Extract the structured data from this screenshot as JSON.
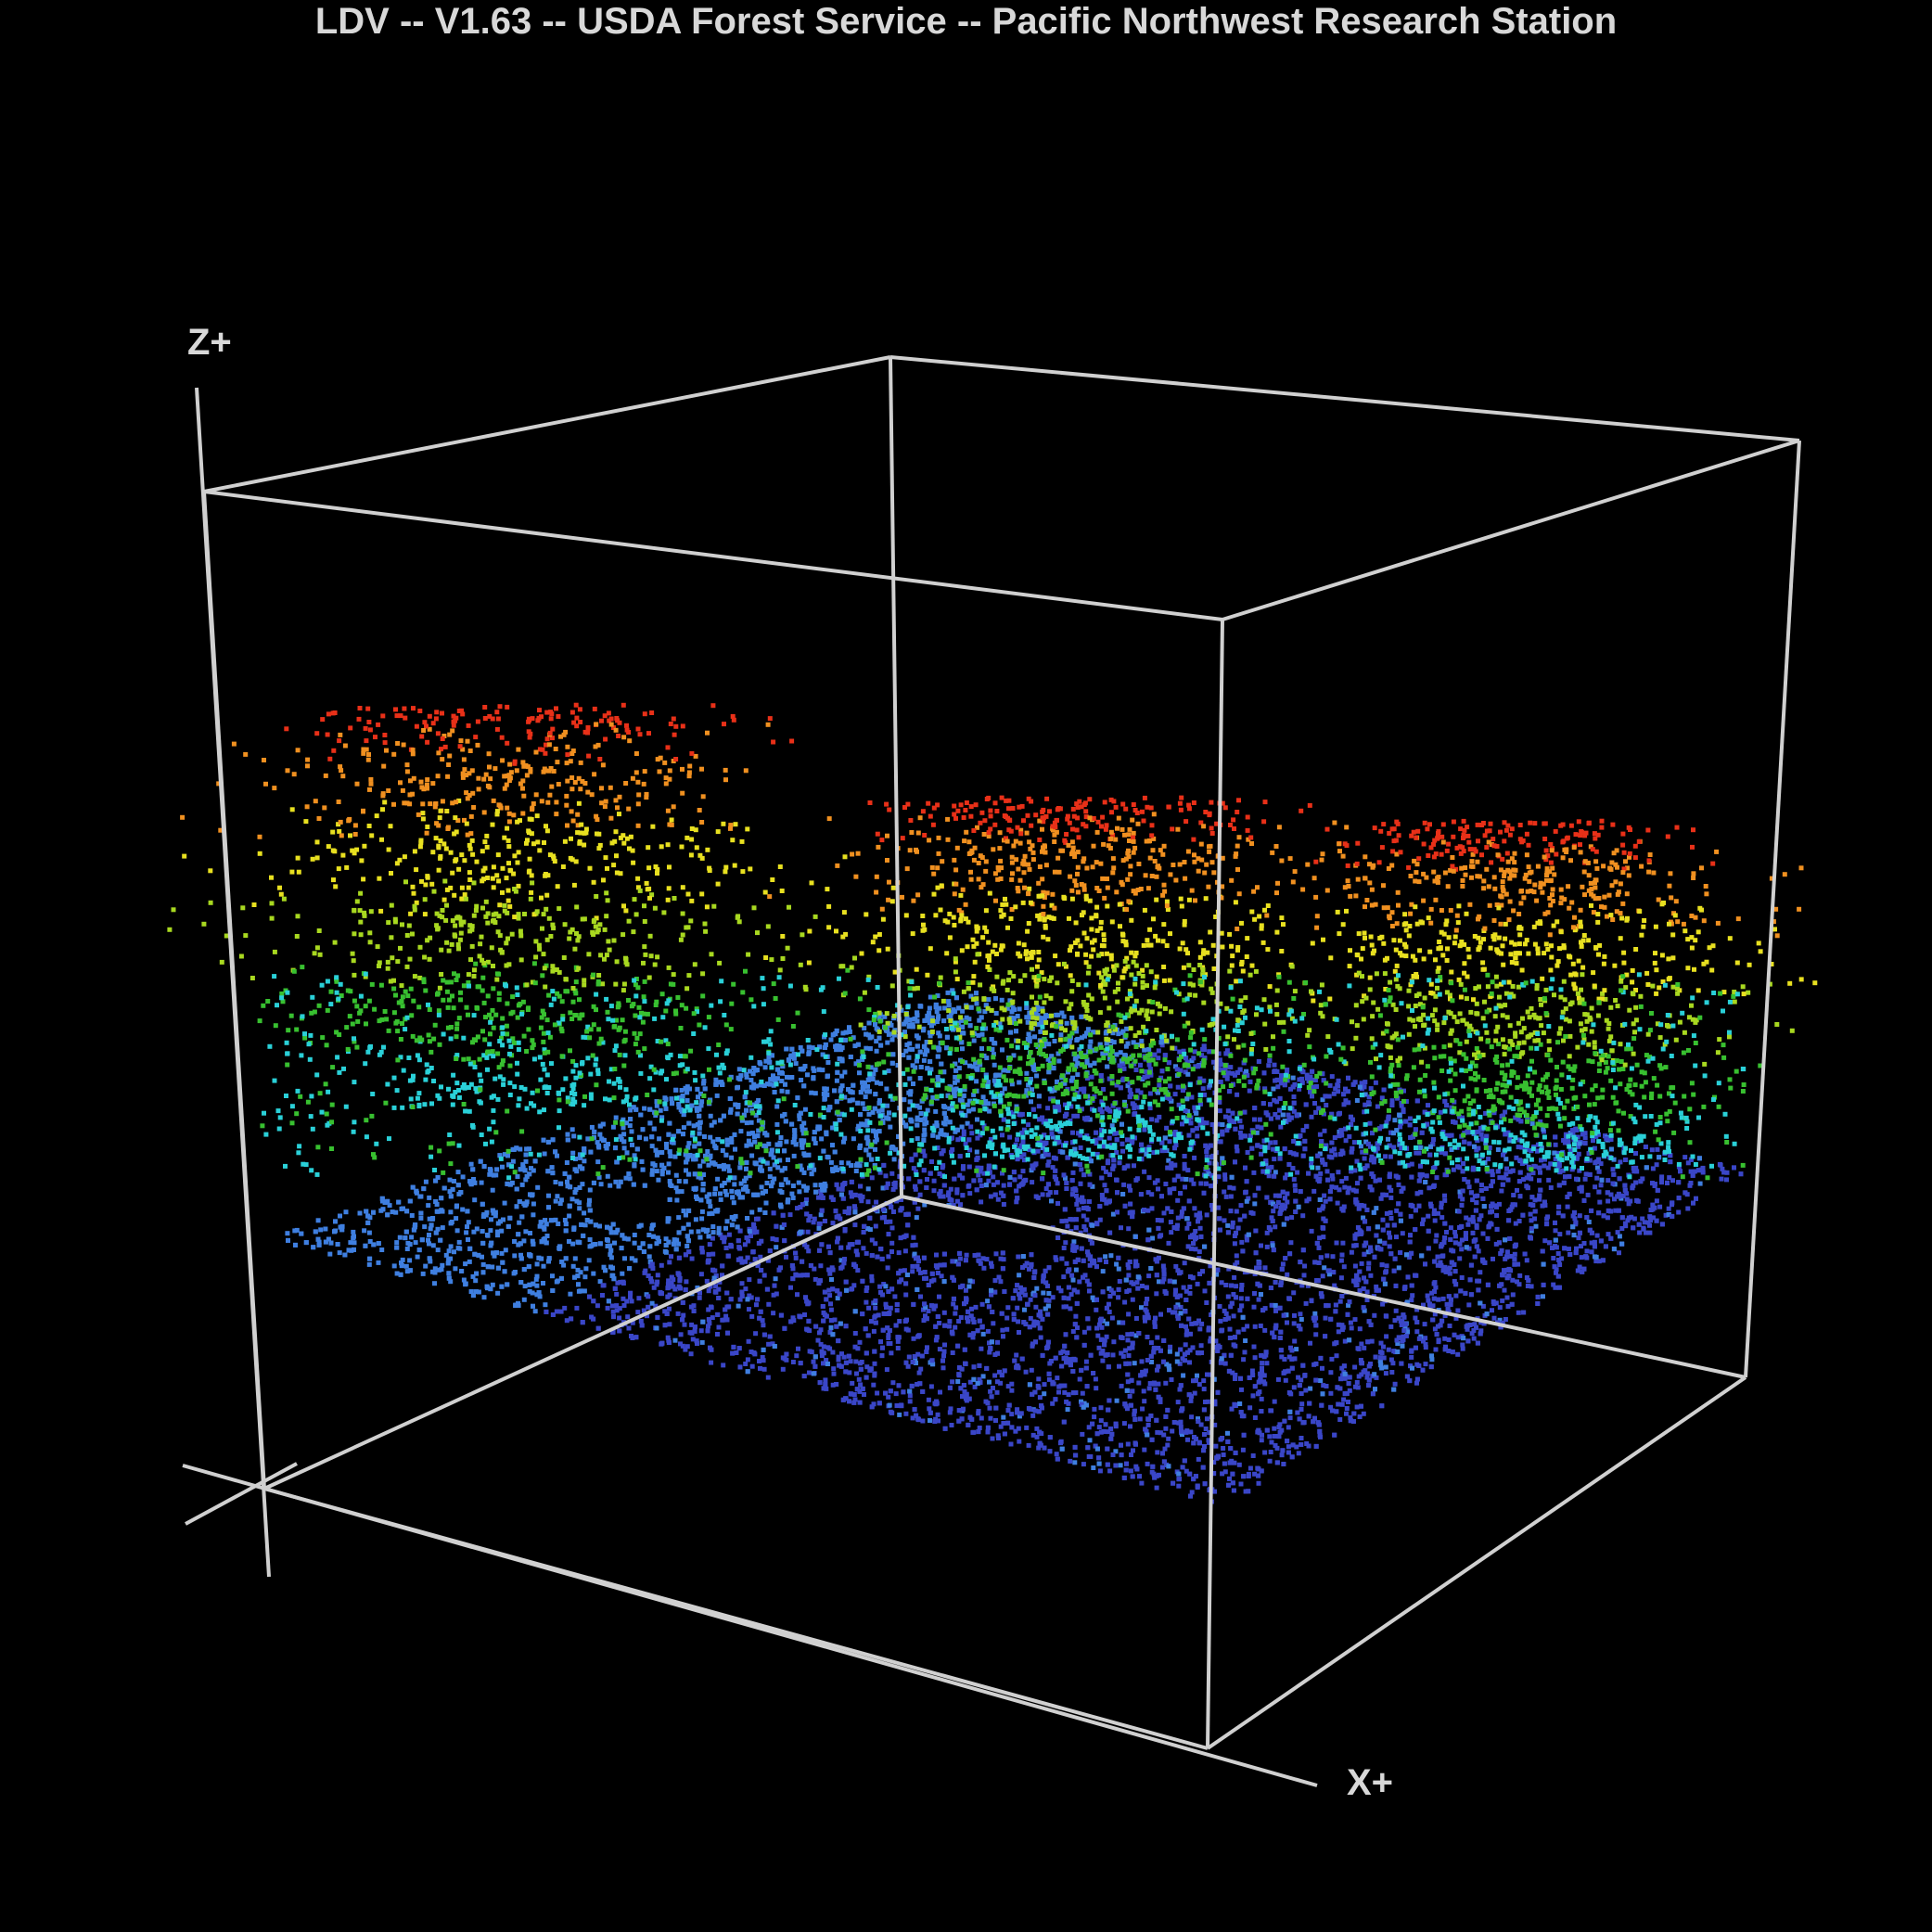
{
  "window": {
    "title": "LDV -- V1.63 -- USDA Forest Service -- Pacific Northwest Research Station"
  },
  "viewport": {
    "background": "#000000",
    "box_color": "#d0d0d0",
    "axes": {
      "z_label": "Z+",
      "x_label": "X+"
    },
    "color_ramp": [
      "#3a46c8",
      "#3f7fe0",
      "#2ad0d8",
      "#38c030",
      "#a8d820",
      "#e8e020",
      "#f09020",
      "#e83018"
    ]
  }
}
